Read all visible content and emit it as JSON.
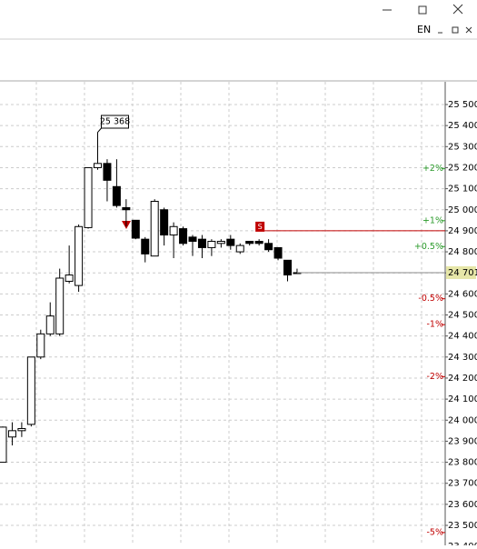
{
  "ui": {
    "language": "EN"
  },
  "chart_data": {
    "type": "candlestick",
    "open": [
      23800,
      23920,
      23950,
      23980,
      24300,
      24410,
      24410,
      24660,
      24640,
      24915,
      25200,
      25220,
      25110,
      25010,
      24950,
      24860,
      24780,
      25000,
      24880,
      24910,
      24870,
      24860,
      24820,
      24840,
      24860,
      24800,
      24850,
      24850,
      24840,
      24820,
      24760,
      24700
    ],
    "high": [
      23970,
      23990,
      23990,
      24300,
      24430,
      24560,
      24720,
      24830,
      24930,
      25200,
      25368,
      25240,
      25240,
      25050,
      24950,
      24870,
      25050,
      25010,
      24940,
      24920,
      24880,
      24880,
      24860,
      24860,
      24880,
      24840,
      24850,
      24860,
      24860,
      24820,
      24760,
      24720
    ],
    "low": [
      23800,
      23880,
      23920,
      23970,
      24290,
      24400,
      24400,
      24650,
      24610,
      24910,
      25190,
      25040,
      25010,
      24920,
      24860,
      24750,
      24780,
      24830,
      24770,
      24830,
      24780,
      24770,
      24780,
      24820,
      24810,
      24790,
      24830,
      24830,
      24800,
      24760,
      24660,
      24700
    ],
    "close": [
      23967,
      23950,
      23960,
      24300,
      24410,
      24495,
      24675,
      24690,
      24920,
      25200,
      25220,
      25140,
      25020,
      25000,
      24865,
      24790,
      25040,
      24880,
      24920,
      24840,
      24850,
      24820,
      24850,
      24850,
      24830,
      24830,
      24840,
      24840,
      24810,
      24770,
      24690,
      24701
    ],
    "ylim": [
      23405,
      25608
    ],
    "yticks": [
      {
        "value": 25500,
        "label": "25 500"
      },
      {
        "value": 25400,
        "label": "25 400"
      },
      {
        "value": 25300,
        "label": "25 300"
      },
      {
        "value": 25200,
        "label": "25 200"
      },
      {
        "value": 25100,
        "label": "25 100"
      },
      {
        "value": 25000,
        "label": "25 000"
      },
      {
        "value": 24900,
        "label": "24 900"
      },
      {
        "value": 24800,
        "label": "24 800"
      },
      {
        "value": 24700,
        "label": "24 700"
      },
      {
        "value": 24600,
        "label": "24 600"
      },
      {
        "value": 24500,
        "label": "24 500"
      },
      {
        "value": 24400,
        "label": "24 400"
      },
      {
        "value": 24300,
        "label": "24 300"
      },
      {
        "value": 24200,
        "label": "24 200"
      },
      {
        "value": 24100,
        "label": "24 100"
      },
      {
        "value": 24000,
        "label": "24 000"
      },
      {
        "value": 23900,
        "label": "23 900"
      },
      {
        "value": 23800,
        "label": "23 800"
      },
      {
        "value": 23700,
        "label": "23 700"
      },
      {
        "value": 23600,
        "label": "23 600"
      },
      {
        "value": 23500,
        "label": "23 500"
      },
      {
        "value": 23400,
        "label": "23 400"
      }
    ],
    "grid": true,
    "high_label": {
      "value": 25368,
      "label": "25 368"
    },
    "last_price": {
      "value": 24701,
      "label": "24 701"
    },
    "level": {
      "value": 24900,
      "color": "#c00000",
      "label": "S"
    },
    "percent_levels": [
      {
        "value": 25195,
        "label": "+2%",
        "color": "#2a9a2a"
      },
      {
        "value": 24948,
        "label": "+1%",
        "color": "#2a9a2a"
      },
      {
        "value": 24825,
        "label": "+0.5%",
        "color": "#2a9a2a"
      },
      {
        "value": 24577,
        "label": "-0.5%",
        "color": "#c00000"
      },
      {
        "value": 24454,
        "label": "-1%",
        "color": "#c00000"
      },
      {
        "value": 24207,
        "label": "-2%",
        "color": "#c00000"
      },
      {
        "value": 23466,
        "label": "-5%",
        "color": "#c00000"
      }
    ]
  }
}
